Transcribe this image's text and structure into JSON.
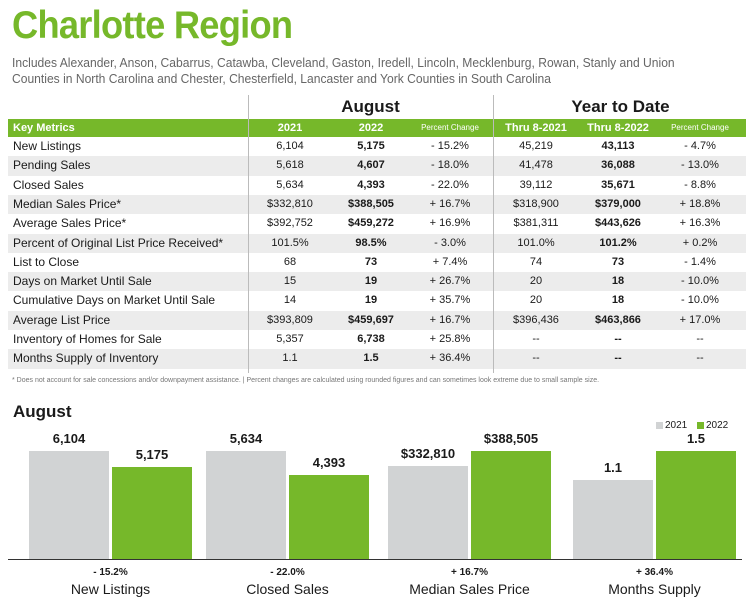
{
  "title": "Charlotte Region",
  "subtitle": "Includes Alexander, Anson, Cabarrus, Catawba, Cleveland, Gaston, Iredell, Lincoln, Mecklenburg, Rowan, Stanly and Union Counties in North Carolina and Chester, Chesterfield, Lancaster and York Counties in South Carolina",
  "table": {
    "section_august": "August",
    "section_ytd": "Year to Date",
    "header": {
      "metrics": "Key Metrics",
      "y2021": "2021",
      "y2022": "2022",
      "pct1": "Percent Change",
      "thru2021": "Thru 8-2021",
      "thru2022": "Thru 8-2022",
      "pct2": "Percent Change"
    },
    "rows": [
      {
        "label": "New Listings",
        "a": "6,104",
        "b": "5,175",
        "pc": "- 15.2%",
        "c": "45,219",
        "d": "43,113",
        "pc2": "- 4.7%"
      },
      {
        "label": "Pending Sales",
        "a": "5,618",
        "b": "4,607",
        "pc": "- 18.0%",
        "c": "41,478",
        "d": "36,088",
        "pc2": "- 13.0%"
      },
      {
        "label": "Closed Sales",
        "a": "5,634",
        "b": "4,393",
        "pc": "- 22.0%",
        "c": "39,112",
        "d": "35,671",
        "pc2": "- 8.8%"
      },
      {
        "label": "Median Sales Price*",
        "a": "$332,810",
        "b": "$388,505",
        "pc": "+ 16.7%",
        "c": "$318,900",
        "d": "$379,000",
        "pc2": "+ 18.8%"
      },
      {
        "label": "Average Sales Price*",
        "a": "$392,752",
        "b": "$459,272",
        "pc": "+ 16.9%",
        "c": "$381,311",
        "d": "$443,626",
        "pc2": "+ 16.3%"
      },
      {
        "label": "Percent of Original List Price Received*",
        "a": "101.5%",
        "b": "98.5%",
        "pc": "- 3.0%",
        "c": "101.0%",
        "d": "101.2%",
        "pc2": "+ 0.2%"
      },
      {
        "label": "List to Close",
        "a": "68",
        "b": "73",
        "pc": "+ 7.4%",
        "c": "74",
        "d": "73",
        "pc2": "- 1.4%"
      },
      {
        "label": "Days on Market Until Sale",
        "a": "15",
        "b": "19",
        "pc": "+ 26.7%",
        "c": "20",
        "d": "18",
        "pc2": "- 10.0%"
      },
      {
        "label": "Cumulative Days on Market Until Sale",
        "a": "14",
        "b": "19",
        "pc": "+ 35.7%",
        "c": "20",
        "d": "18",
        "pc2": "- 10.0%"
      },
      {
        "label": "Average List Price",
        "a": "$393,809",
        "b": "$459,697",
        "pc": "+ 16.7%",
        "c": "$396,436",
        "d": "$463,866",
        "pc2": "+ 17.0%"
      },
      {
        "label": "Inventory of Homes for Sale",
        "a": "5,357",
        "b": "6,738",
        "pc": "+ 25.8%",
        "c": "--",
        "d": "--",
        "pc2": "--"
      },
      {
        "label": "Months Supply of Inventory",
        "a": "1.1",
        "b": "1.5",
        "pc": "+ 36.4%",
        "c": "--",
        "d": "--",
        "pc2": "--"
      }
    ]
  },
  "footnote": "* Does not account for sale concessions and/or downpayment assistance.  |  Percent changes are calculated using rounded figures and can sometimes look extreme due to small sample size.",
  "chart_data": {
    "type": "bar",
    "title": "August",
    "series": [
      {
        "name": "2021",
        "color": "#d1d3d4"
      },
      {
        "name": "2022",
        "color": "#76b82a"
      }
    ],
    "groups": [
      {
        "category": "New Listings",
        "pct": "- 15.2%",
        "v2021": 6104,
        "v2022": 5175,
        "l2021": "6,104",
        "l2022": "5,175"
      },
      {
        "category": "Closed Sales",
        "pct": "- 22.0%",
        "v2021": 5634,
        "v2022": 4393,
        "l2021": "5,634",
        "l2022": "4,393"
      },
      {
        "category": "Median Sales Price",
        "pct": "+ 16.7%",
        "v2021": 332810,
        "v2022": 388505,
        "l2021": "$332,810",
        "l2022": "$388,505"
      },
      {
        "category": "Months Supply",
        "pct": "+ 36.4%",
        "v2021": 1.1,
        "v2022": 1.5,
        "l2021": "1.1",
        "l2022": "1.5"
      }
    ]
  }
}
